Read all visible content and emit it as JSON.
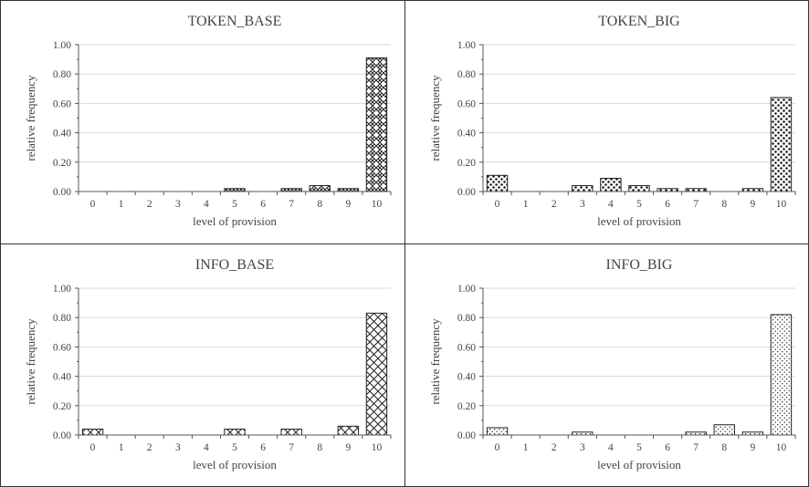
{
  "chart_data": [
    {
      "type": "bar",
      "title": "TOKEN_BASE",
      "xlabel": "level of provision",
      "ylabel": "relative frequency",
      "categories": [
        "0",
        "1",
        "2",
        "3",
        "4",
        "5",
        "6",
        "7",
        "8",
        "9",
        "10"
      ],
      "values": [
        0,
        0,
        0,
        0,
        0,
        0.02,
        0,
        0.02,
        0.04,
        0.02,
        0.91
      ],
      "ylim": [
        0,
        1
      ],
      "yticks": [
        "0.00",
        "0.20",
        "0.40",
        "0.60",
        "0.80",
        "1.00"
      ],
      "grid": true,
      "pattern": "hex-hatch"
    },
    {
      "type": "bar",
      "title": "TOKEN_BIG",
      "xlabel": "level of provision",
      "ylabel": "relative frequency",
      "categories": [
        "0",
        "1",
        "2",
        "3",
        "4",
        "5",
        "6",
        "7",
        "8",
        "9",
        "10"
      ],
      "values": [
        0.11,
        0,
        0,
        0.04,
        0.09,
        0.04,
        0.02,
        0.02,
        0,
        0.02,
        0.64
      ],
      "ylim": [
        0,
        1
      ],
      "yticks": [
        "0.00",
        "0.20",
        "0.40",
        "0.60",
        "0.80",
        "1.00"
      ],
      "grid": true,
      "pattern": "large-dots"
    },
    {
      "type": "bar",
      "title": "INFO_BASE",
      "xlabel": "level of provision",
      "ylabel": "relative frequency",
      "categories": [
        "0",
        "1",
        "2",
        "3",
        "4",
        "5",
        "6",
        "7",
        "8",
        "9",
        "10"
      ],
      "values": [
        0.04,
        0,
        0,
        0,
        0,
        0.04,
        0,
        0.04,
        0,
        0.06,
        0.83
      ],
      "ylim": [
        0,
        1
      ],
      "yticks": [
        "0.00",
        "0.20",
        "0.40",
        "0.60",
        "0.80",
        "1.00"
      ],
      "grid": true,
      "pattern": "diagonal-crosshatch"
    },
    {
      "type": "bar",
      "title": "INFO_BIG",
      "xlabel": "level of provision",
      "ylabel": "relative frequency",
      "categories": [
        "0",
        "1",
        "2",
        "3",
        "4",
        "5",
        "6",
        "7",
        "8",
        "9",
        "10"
      ],
      "values": [
        0.05,
        0,
        0,
        0.02,
        0,
        0,
        0,
        0.02,
        0.07,
        0.02,
        0.82
      ],
      "ylim": [
        0,
        1
      ],
      "yticks": [
        "0.00",
        "0.20",
        "0.40",
        "0.60",
        "0.80",
        "1.00"
      ],
      "grid": true,
      "pattern": "small-dots"
    }
  ],
  "colors": {
    "axis": "#555555",
    "grid": "#d9d9d9",
    "bar_stroke": "#222222",
    "frame": "#333333"
  }
}
